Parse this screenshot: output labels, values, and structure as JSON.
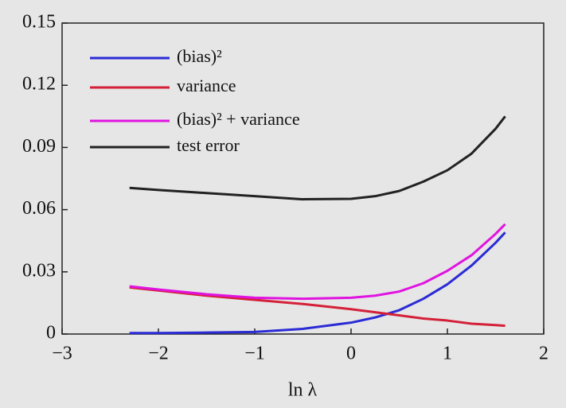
{
  "chart_data": {
    "type": "line",
    "xlabel": "ln λ",
    "x": [
      -2.3,
      -2,
      -1.5,
      -1,
      -0.5,
      0,
      0.25,
      0.5,
      0.75,
      1,
      1.25,
      1.5,
      1.6
    ],
    "series": [
      {
        "name": "(bias)²",
        "color": "#2b2bd6",
        "values": [
          0.0005,
          0.0005,
          0.0007,
          0.001,
          0.0025,
          0.0055,
          0.008,
          0.0115,
          0.017,
          0.024,
          0.033,
          0.044,
          0.049
        ]
      },
      {
        "name": "variance",
        "color": "#d42038",
        "values": [
          0.0225,
          0.021,
          0.0185,
          0.0165,
          0.0145,
          0.012,
          0.0105,
          0.009,
          0.0075,
          0.0065,
          0.005,
          0.0043,
          0.004
        ]
      },
      {
        "name": "(bias)² + variance",
        "color": "#e014e0",
        "values": [
          0.023,
          0.0215,
          0.0192,
          0.0175,
          0.017,
          0.0175,
          0.0185,
          0.0205,
          0.0245,
          0.0305,
          0.038,
          0.0483,
          0.053
        ]
      },
      {
        "name": "test error",
        "color": "#222222",
        "values": [
          0.0705,
          0.0695,
          0.068,
          0.0665,
          0.065,
          0.0652,
          0.0665,
          0.069,
          0.0735,
          0.079,
          0.087,
          0.099,
          0.105
        ]
      }
    ],
    "xlim": [
      -3,
      2
    ],
    "xticks": [
      {
        "value": -3,
        "label": "−3"
      },
      {
        "value": -2,
        "label": "−2"
      },
      {
        "value": -1,
        "label": "−1"
      },
      0,
      1,
      2
    ],
    "ylim": [
      0,
      0.15
    ],
    "yticks": [
      0,
      0.03,
      0.06,
      0.09,
      0.12,
      0.15
    ],
    "legend": "upper-left"
  }
}
